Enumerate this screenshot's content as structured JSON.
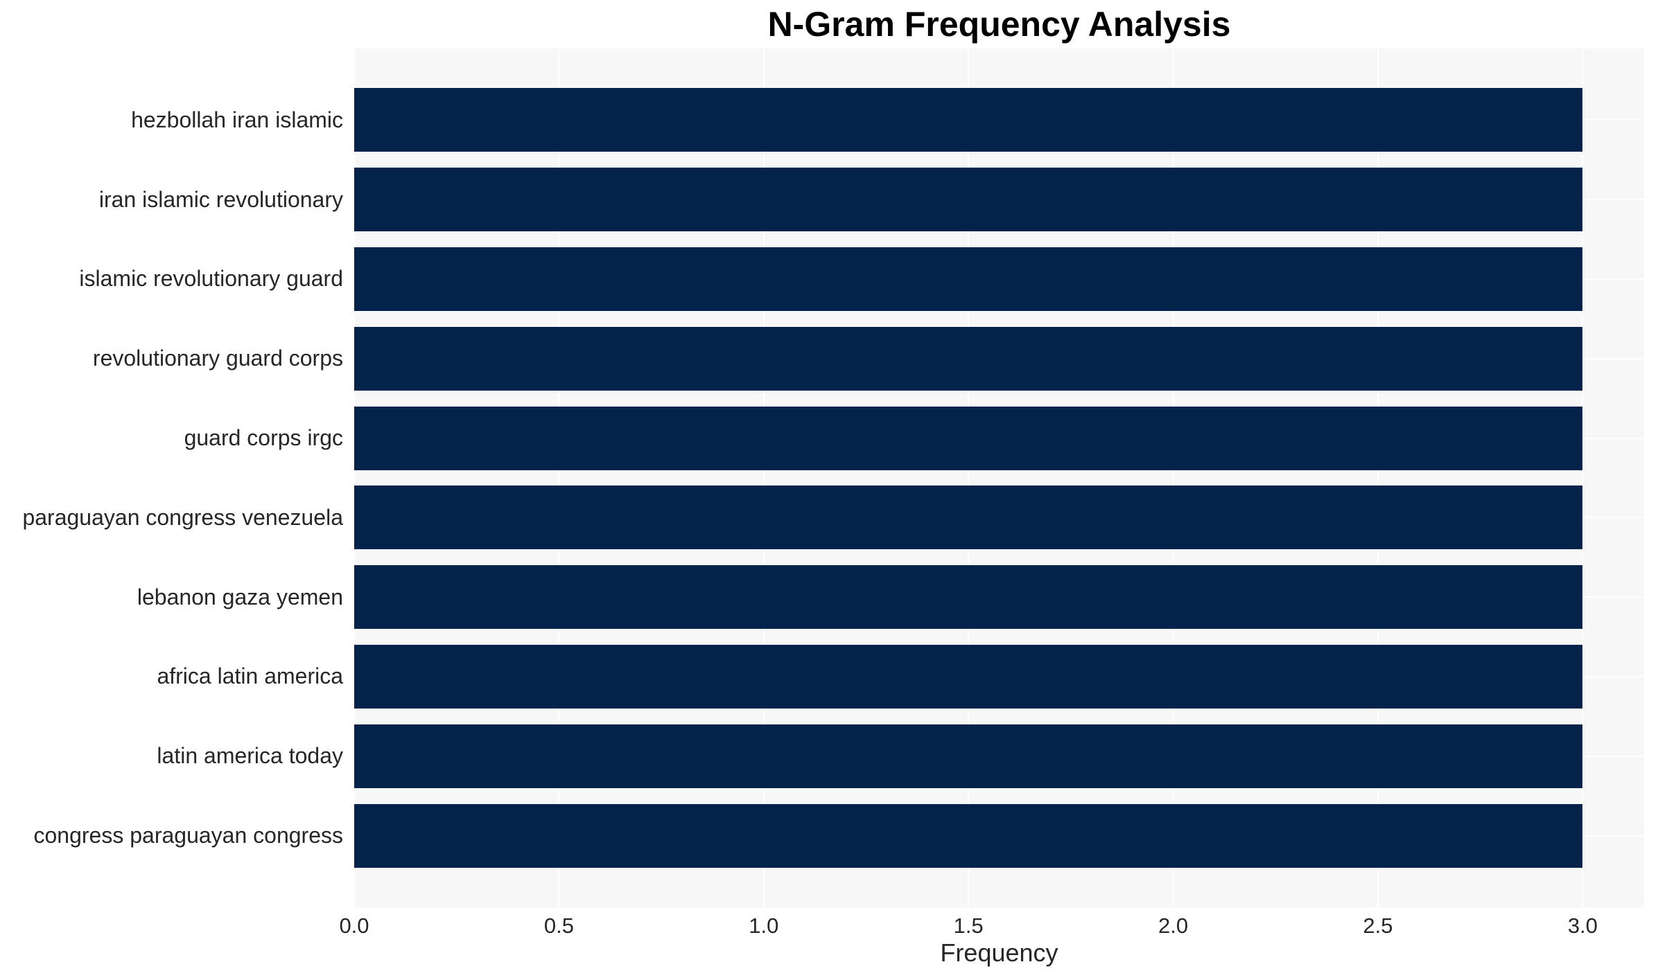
{
  "chart_data": {
    "type": "bar",
    "orientation": "horizontal",
    "title": "N-Gram Frequency Analysis",
    "xlabel": "Frequency",
    "ylabel": "",
    "categories": [
      "hezbollah iran islamic",
      "iran islamic revolutionary",
      "islamic revolutionary guard",
      "revolutionary guard corps",
      "guard corps irgc",
      "paraguayan congress venezuela",
      "lebanon gaza yemen",
      "africa latin america",
      "latin america today",
      "congress paraguayan congress"
    ],
    "values": [
      3,
      3,
      3,
      3,
      3,
      3,
      3,
      3,
      3,
      3
    ],
    "xtick_labels": [
      "0.0",
      "0.5",
      "1.0",
      "1.5",
      "2.0",
      "2.5",
      "3.0"
    ],
    "xtick_values": [
      0.0,
      0.5,
      1.0,
      1.5,
      2.0,
      2.5,
      3.0
    ],
    "xlim": [
      0,
      3.15
    ],
    "grid": true,
    "legend": false,
    "colors": {
      "bar": "#03234b",
      "plot_background": "#f7f7f7",
      "gridline": "#ffffff",
      "text": "#262626",
      "title": "#000000"
    }
  }
}
